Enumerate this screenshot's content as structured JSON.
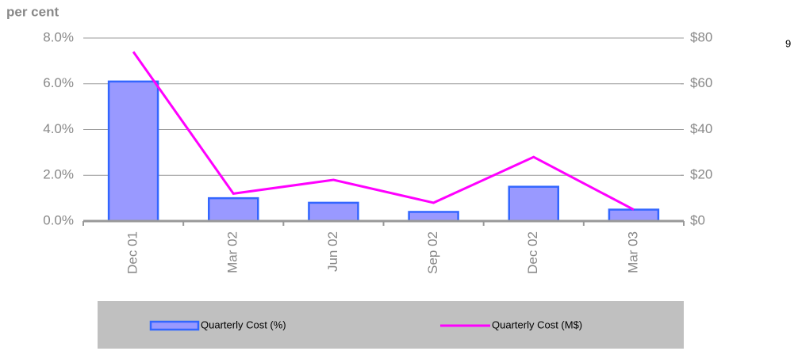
{
  "chart_data": {
    "type": "bar_line",
    "ylabel": "per cent",
    "annotation": "9",
    "categories": [
      "Dec 01",
      "Mar 02",
      "Jun 02",
      "Sep 02",
      "Dec 02",
      "Mar 03"
    ],
    "series": [
      {
        "name": "Quarterly Cost (%)",
        "type": "bar",
        "color": "#9999ff",
        "edge_color": "#3366ff",
        "values": [
          6.1,
          1.0,
          0.8,
          0.4,
          1.5,
          0.5
        ]
      },
      {
        "name": "Quarterly Cost (M$)",
        "type": "line",
        "axis": "y2",
        "color": "#ff00ff",
        "values": [
          74,
          12,
          18,
          8,
          28,
          5
        ]
      }
    ],
    "ylim": [
      0,
      8
    ],
    "yticks": [
      {
        "value": 0,
        "label": "0.0%"
      },
      {
        "value": 2,
        "label": "2.0%"
      },
      {
        "value": 4,
        "label": "4.0%"
      },
      {
        "value": 6,
        "label": "6.0%"
      },
      {
        "value": 8,
        "label": "8.0%"
      }
    ],
    "y2lim": [
      0,
      80
    ],
    "y2ticks": [
      {
        "value": 0,
        "label": "$0"
      },
      {
        "value": 20,
        "label": "$20"
      },
      {
        "value": 40,
        "label": "$40"
      },
      {
        "value": 60,
        "label": "$60"
      },
      {
        "value": 80,
        "label": "$80"
      }
    ],
    "grid": true
  }
}
